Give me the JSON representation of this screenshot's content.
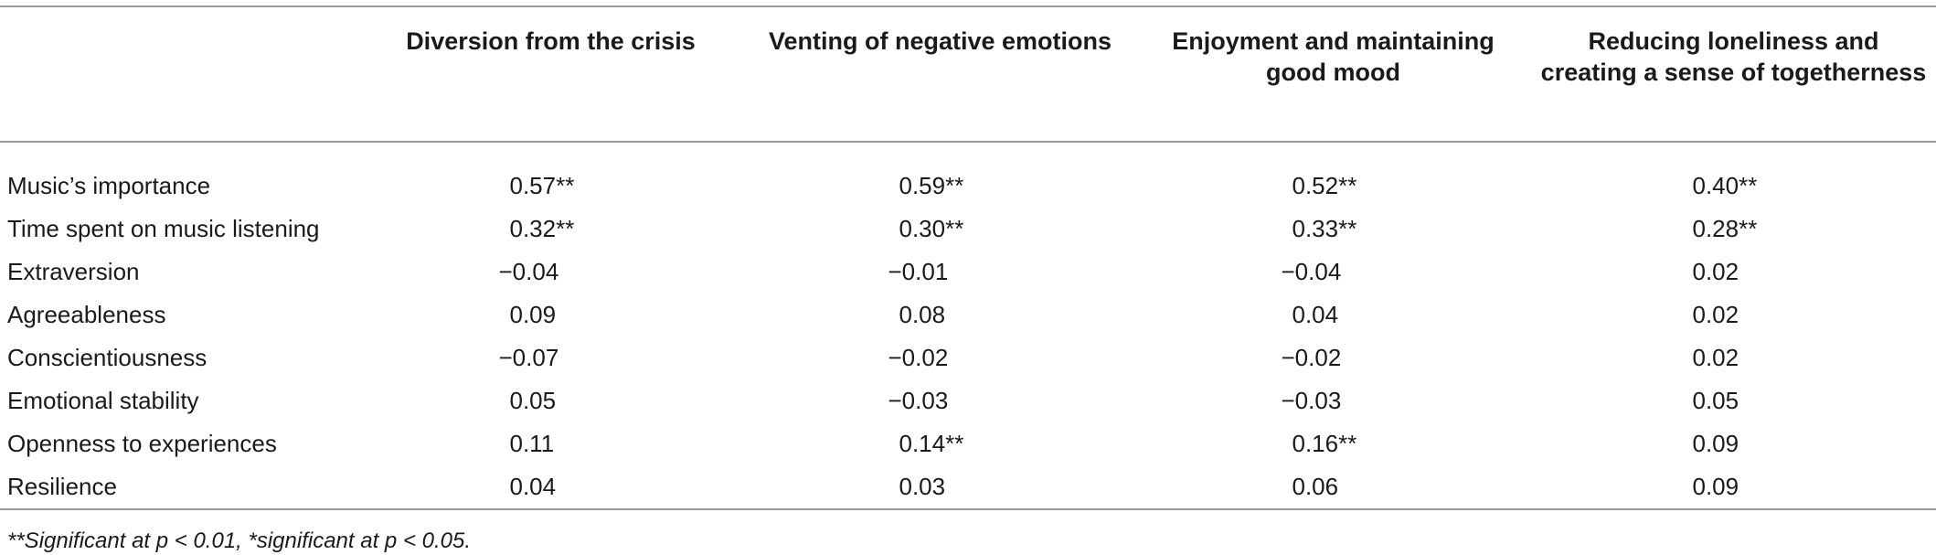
{
  "table": {
    "columns": [
      "",
      "Diversion from the crisis",
      "Venting of negative emotions",
      "Enjoyment and maintaining good mood",
      "Reducing loneliness and creating a sense of togetherness"
    ],
    "rows": [
      {
        "label": "Music’s importance",
        "values": [
          "0.57**",
          "0.59**",
          "0.52**",
          "0.40**"
        ]
      },
      {
        "label": "Time spent on music listening",
        "values": [
          "0.32**",
          "0.30**",
          "0.33**",
          "0.28**"
        ]
      },
      {
        "label": "Extraversion",
        "values": [
          "−0.04",
          "−0.01",
          "−0.04",
          "0.02"
        ]
      },
      {
        "label": "Agreeableness",
        "values": [
          "0.09",
          "0.08",
          "0.04",
          "0.02"
        ]
      },
      {
        "label": "Conscientiousness",
        "values": [
          "−0.07",
          "−0.02",
          "−0.02",
          "0.02"
        ]
      },
      {
        "label": "Emotional stability",
        "values": [
          "0.05",
          "−0.03",
          "−0.03",
          "0.05"
        ]
      },
      {
        "label": "Openness to experiences",
        "values": [
          "0.11",
          "0.14**",
          "0.16**",
          "0.09"
        ]
      },
      {
        "label": "Resilience",
        "values": [
          "0.04",
          "0.03",
          "0.06",
          "0.09"
        ]
      }
    ]
  },
  "footnote": "**Significant at p < 0.01, *significant at p < 0.05."
}
